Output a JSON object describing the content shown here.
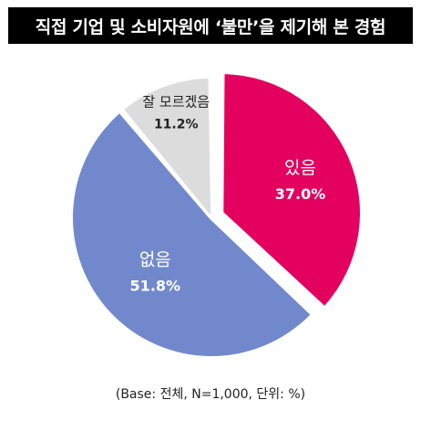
{
  "title": "직접 기업 및 소비자원에 ‘불만’을 제기해 본 경험",
  "footnote": "(Base: 전체, N=1,000, 단위: %)",
  "chart_data": {
    "type": "pie",
    "title": "직접 기업 및 소비자원에 ‘불만’을 제기해 본 경험",
    "unit": "%",
    "start": "12 o'clock",
    "direction": "clockwise",
    "slices": [
      {
        "label": "있음",
        "value": 37.0,
        "value_label": "37.0%",
        "color": "#e3005f",
        "label_color": "#ffffff",
        "exploded": true
      },
      {
        "label": "없음",
        "value": 51.8,
        "value_label": "51.8%",
        "color": "#7189cc",
        "label_color": "#ffffff",
        "exploded": false
      },
      {
        "label": "잘 모르겠음",
        "value": 11.2,
        "value_label": "11.2%",
        "color": "#dcdcdc",
        "label_color": "#222222",
        "exploded": false
      }
    ]
  }
}
